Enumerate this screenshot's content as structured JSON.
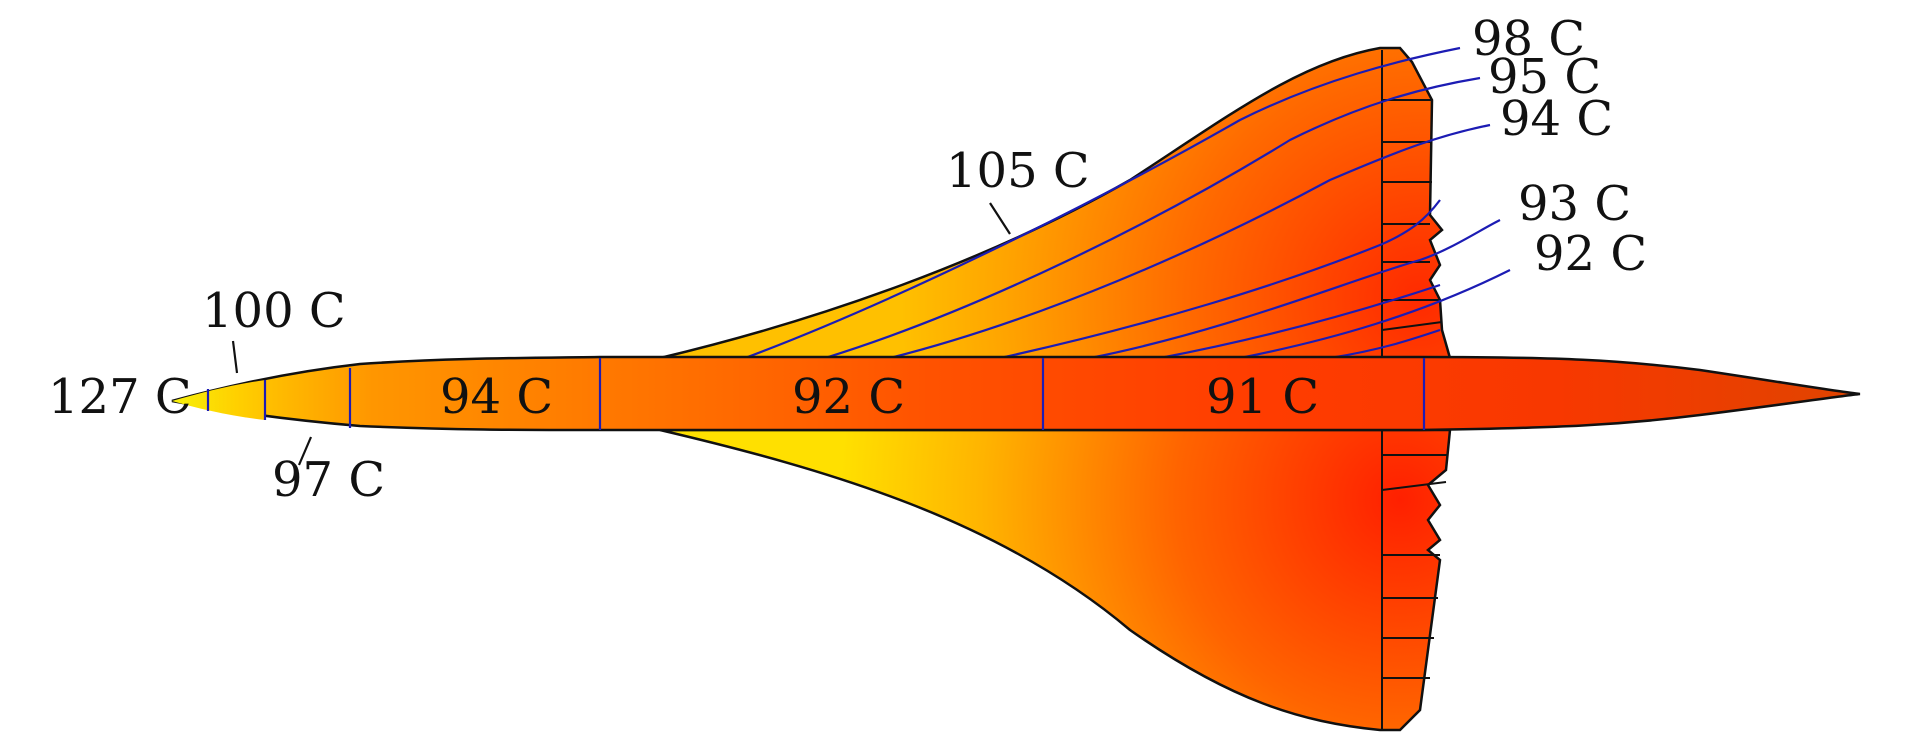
{
  "diagram": {
    "colors": {
      "hot": "#f5f50f",
      "warm": "#ffb000",
      "mid": "#ff7a00",
      "cool": "#ff3a00",
      "tail": "#e84a00",
      "outline": "#111111",
      "isotherm": "#1c1cb4",
      "leader": "#111111"
    },
    "labels": {
      "nose_tip": "127 C",
      "nose_top": "100 C",
      "nose_bottom": "97 C",
      "fuselage_front": "94 C",
      "fuselage_mid": "92 C",
      "fuselage_rear": "91 C",
      "wing_leading_edge": "105 C",
      "wing_98": "98 C",
      "wing_95": "95 C",
      "wing_94": "94 C",
      "wing_93": "93 C",
      "wing_92": "92 C"
    }
  }
}
